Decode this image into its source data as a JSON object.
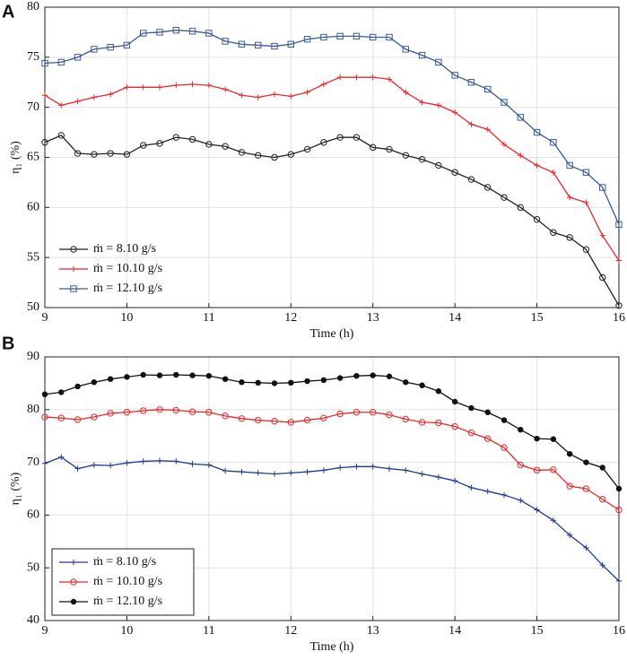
{
  "chart_data": [
    {
      "type": "line",
      "panel": "A",
      "xlabel": "Time (h)",
      "ylabel": "η₁ (%)",
      "x": [
        9,
        9.2,
        9.4,
        9.6,
        9.8,
        10,
        10.2,
        10.4,
        10.6,
        10.8,
        11,
        11.2,
        11.4,
        11.6,
        11.8,
        12,
        12.2,
        12.4,
        12.6,
        12.8,
        13,
        13.2,
        13.4,
        13.6,
        13.8,
        14,
        14.2,
        14.4,
        14.6,
        14.8,
        15,
        15.2,
        15.4,
        15.6,
        15.8,
        16
      ],
      "xlim": [
        9,
        16
      ],
      "xticks": [
        9,
        10,
        11,
        12,
        13,
        14,
        15,
        16
      ],
      "ylim": [
        50,
        80
      ],
      "yticks": [
        50,
        55,
        60,
        65,
        70,
        75,
        80
      ],
      "grid": true,
      "legend": "lower left",
      "legend_box": false,
      "series": [
        {
          "name": "ṁ = 8.10 g/s",
          "color": "#222222",
          "marker": "circle",
          "values": [
            66.5,
            67.2,
            65.4,
            65.3,
            65.4,
            65.3,
            66.2,
            66.4,
            67,
            66.8,
            66.3,
            66.1,
            65.5,
            65.2,
            65,
            65.3,
            65.8,
            66.5,
            67,
            67,
            66,
            65.8,
            65.2,
            64.8,
            64.2,
            63.5,
            62.8,
            62,
            61,
            60,
            58.8,
            57.5,
            57,
            55.8,
            53,
            50.2
          ]
        },
        {
          "name": "ṁ = 10.10 g/s",
          "color": "#e8282b",
          "marker": "plus",
          "values": [
            71.2,
            70.2,
            70.6,
            71,
            71.3,
            72,
            72,
            72,
            72.2,
            72.3,
            72.2,
            71.8,
            71.2,
            71,
            71.3,
            71.1,
            71.5,
            72.3,
            73,
            73,
            73,
            72.8,
            71.5,
            70.5,
            70.2,
            69.5,
            68.3,
            67.8,
            66.3,
            65.2,
            64.2,
            63.5,
            61,
            60.5,
            57.2,
            54.7
          ]
        },
        {
          "name": "ṁ = 12.10 g/s",
          "color": "#3a5a9a",
          "marker": "square",
          "values": [
            74.4,
            74.5,
            75,
            75.8,
            76,
            76.2,
            77.4,
            77.5,
            77.7,
            77.6,
            77.4,
            76.6,
            76.3,
            76.2,
            76.1,
            76.3,
            76.8,
            77,
            77.1,
            77.1,
            77,
            77,
            75.8,
            75.2,
            74.5,
            73.2,
            72.5,
            71.8,
            70.5,
            69,
            67.5,
            66.5,
            64.2,
            63.5,
            62,
            58.3
          ]
        }
      ]
    },
    {
      "type": "line",
      "panel": "B",
      "xlabel": "Time (h)",
      "ylabel": "η₁ (%)",
      "x": [
        9,
        9.2,
        9.4,
        9.6,
        9.8,
        10,
        10.2,
        10.4,
        10.6,
        10.8,
        11,
        11.2,
        11.4,
        11.6,
        11.8,
        12,
        12.2,
        12.4,
        12.6,
        12.8,
        13,
        13.2,
        13.4,
        13.6,
        13.8,
        14,
        14.2,
        14.4,
        14.6,
        14.8,
        15,
        15.2,
        15.4,
        15.6,
        15.8,
        16
      ],
      "xlim": [
        9,
        16
      ],
      "xticks": [
        9,
        10,
        11,
        12,
        13,
        14,
        15,
        16
      ],
      "ylim": [
        40,
        90
      ],
      "yticks": [
        40,
        50,
        60,
        70,
        80,
        90
      ],
      "grid": true,
      "legend": "lower left",
      "legend_box": true,
      "series": [
        {
          "name": "ṁ = 8.10 g/s",
          "color": "#1f3d8f",
          "marker": "plus",
          "values": [
            69.8,
            71,
            68.8,
            69.5,
            69.4,
            69.9,
            70.2,
            70.3,
            70.2,
            69.7,
            69.5,
            68.4,
            68.2,
            68,
            67.8,
            68,
            68.2,
            68.5,
            69,
            69.2,
            69.2,
            68.8,
            68.5,
            67.8,
            67.2,
            66.5,
            65.2,
            64.5,
            63.8,
            62.8,
            61,
            59,
            56.2,
            53.8,
            50.5,
            47.5
          ]
        },
        {
          "name": "ṁ = 10.10 g/s",
          "color": "#e8282b",
          "marker": "circle",
          "values": [
            78.6,
            78.4,
            78.1,
            78.6,
            79.3,
            79.5,
            79.8,
            80,
            79.9,
            79.6,
            79.5,
            78.8,
            78.3,
            78,
            77.8,
            77.6,
            78,
            78.4,
            79.2,
            79.5,
            79.5,
            79,
            78.2,
            77.6,
            77.5,
            76.8,
            75.6,
            74.5,
            72.8,
            69.5,
            68.5,
            68.6,
            65.5,
            65,
            63,
            61
          ]
        },
        {
          "name": "ṁ = 12.10 g/s",
          "color": "#111111",
          "marker": "dot",
          "values": [
            82.9,
            83.3,
            84.4,
            85.2,
            85.8,
            86.2,
            86.6,
            86.5,
            86.6,
            86.5,
            86.4,
            85.8,
            85.2,
            85.1,
            85,
            85.1,
            85.4,
            85.6,
            86,
            86.4,
            86.5,
            86.3,
            85.2,
            84.6,
            83.5,
            81.5,
            80.3,
            79.5,
            78,
            76.2,
            74.5,
            74.4,
            71.6,
            70,
            69,
            65
          ]
        }
      ]
    }
  ]
}
